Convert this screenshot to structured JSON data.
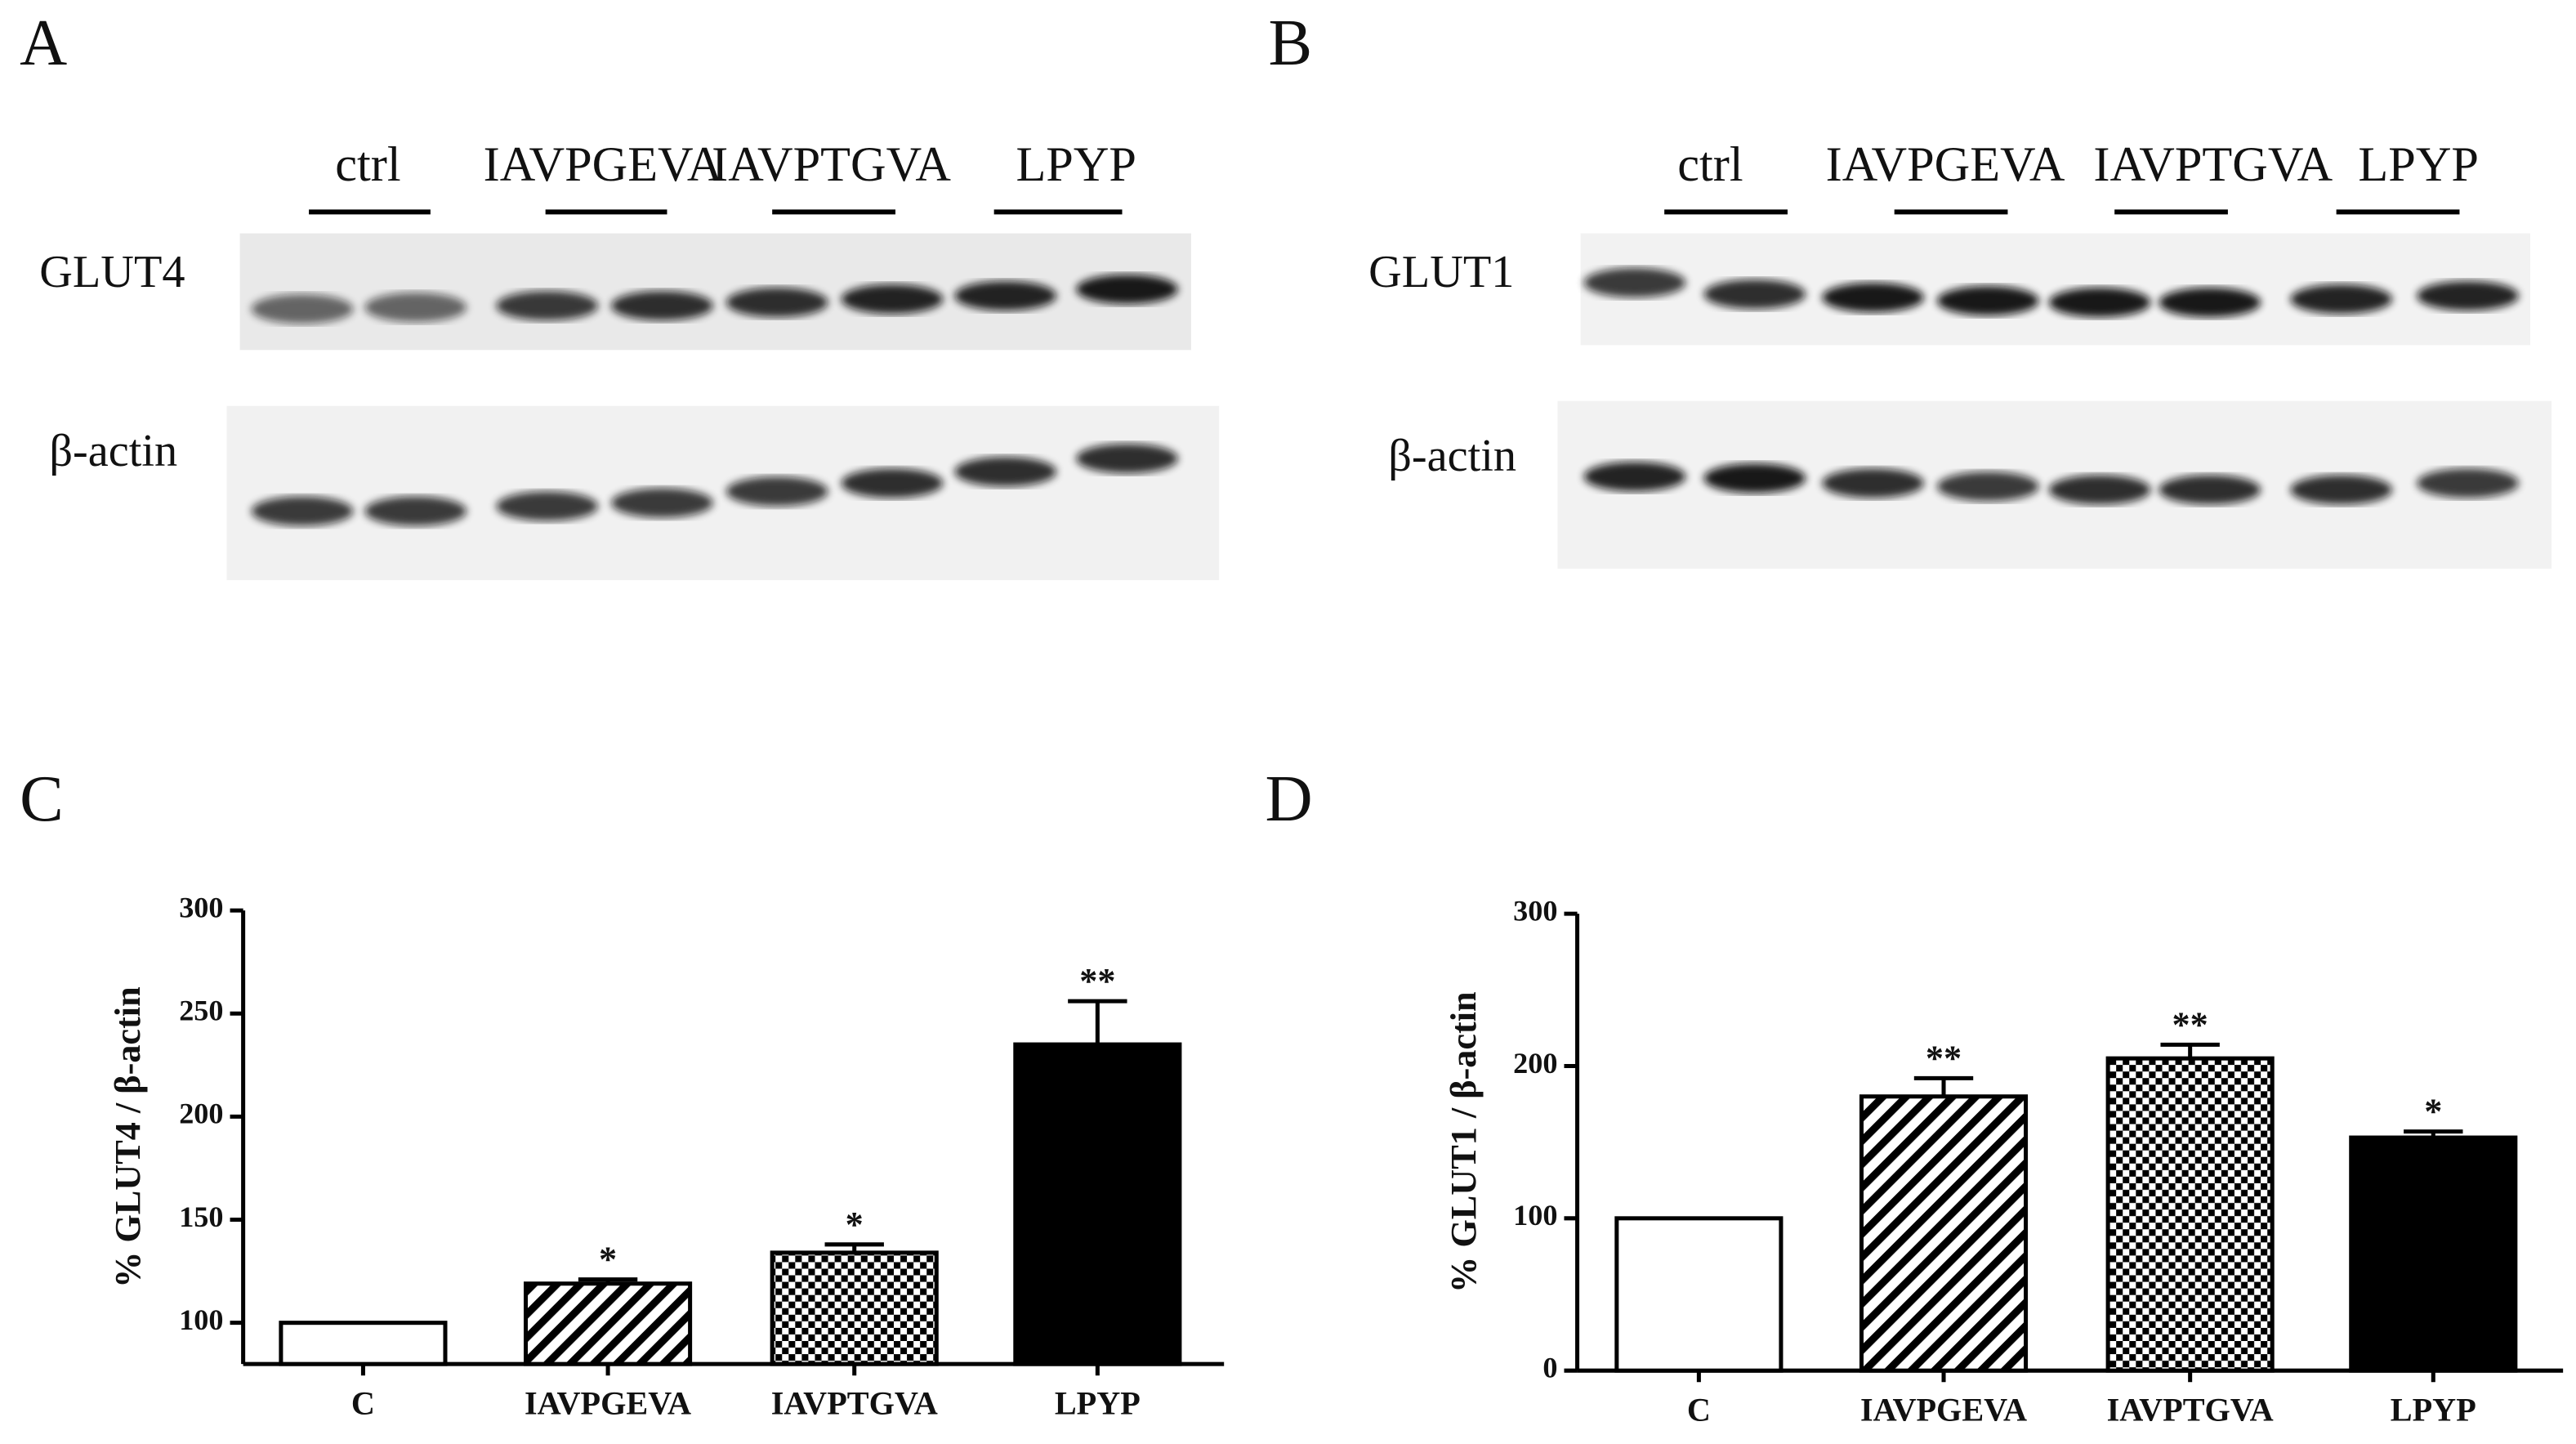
{
  "blots": [
    {
      "letter": "A",
      "lanes": [
        "ctrl",
        "IAVPGEVA",
        "IAVPTGVA",
        "LPYP"
      ],
      "rows": [
        "GLUT4",
        "β-actin"
      ]
    },
    {
      "letter": "B",
      "lanes": [
        "ctrl",
        "IAVPGEVA",
        "IAVPTGVA",
        "LPYP"
      ],
      "rows": [
        "GLUT1",
        "β-actin"
      ]
    }
  ],
  "chart_data": [
    {
      "type": "bar",
      "letter": "C",
      "y_label": "% GLUT4 / β-actin",
      "categories": [
        "C",
        "IAVPGEVA",
        "IAVPTGVA",
        "LPYP"
      ],
      "values": [
        100,
        119,
        134,
        235
      ],
      "errors": [
        null,
        2,
        4,
        21
      ],
      "significance": [
        null,
        "*",
        "*",
        "**"
      ],
      "fills": [
        "white",
        "hatch",
        "check",
        "black"
      ],
      "ylim": [
        80,
        300
      ],
      "yticks": [
        100,
        150,
        200,
        250,
        300
      ]
    },
    {
      "type": "bar",
      "letter": "D",
      "y_label": "% GLUT1 / β-actin",
      "categories": [
        "C",
        "IAVPGEVA",
        "IAVPTGVA",
        "LPYP"
      ],
      "values": [
        100,
        180,
        205,
        153
      ],
      "errors": [
        null,
        12,
        9,
        4
      ],
      "significance": [
        null,
        "**",
        "**",
        "*"
      ],
      "fills": [
        "white",
        "hatch",
        "check",
        "black"
      ],
      "ylim": [
        0,
        300
      ],
      "yticks": [
        0,
        100,
        200,
        300
      ]
    }
  ]
}
